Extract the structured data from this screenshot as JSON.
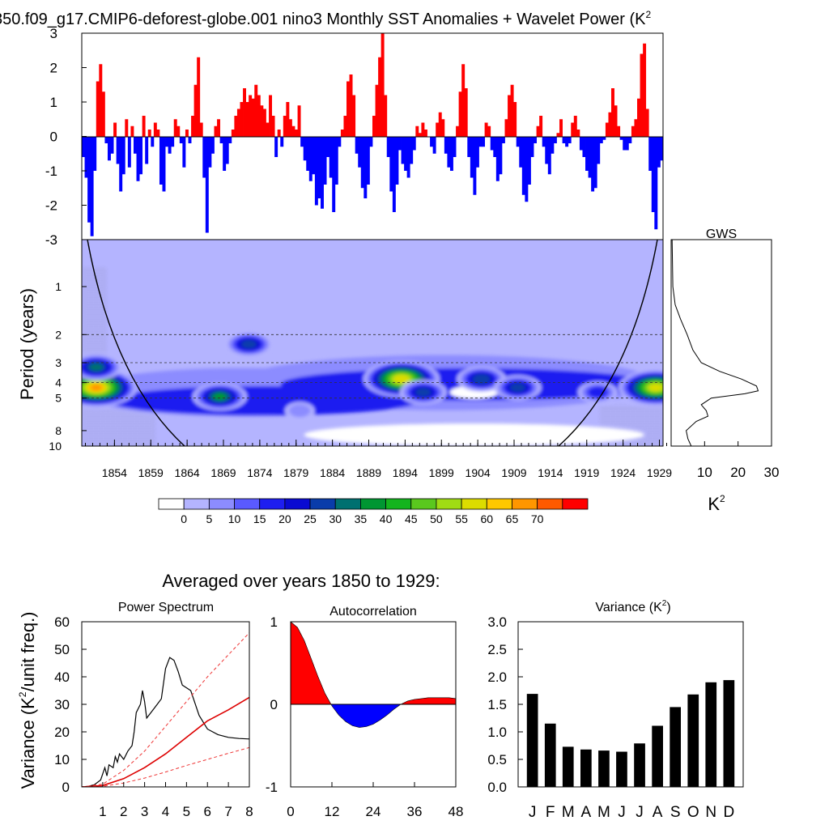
{
  "figure": {
    "title": "850.f09_g17.CMIP6-deforest-globe.001 nino3 Monthly SST Anomalies + Wavelet Power (K",
    "title_sup": "2",
    "averaged_label": "Averaged over years 1850 to 1929:"
  },
  "chart_data": [
    {
      "id": "anomaly",
      "type": "bar",
      "ylim": [
        -3,
        3
      ],
      "yticks": [
        "3",
        "2",
        "1",
        "0",
        "-1",
        "-2",
        "-3"
      ],
      "colors": {
        "positive": "#ff0000",
        "negative": "#0000ff"
      },
      "x_start_year": 1850,
      "x_end_year": 1930,
      "values": [
        -0.6,
        -1.2,
        -2.5,
        -2.9,
        -1.0,
        1.6,
        2.1,
        1.3,
        -0.2,
        -0.7,
        -0.5,
        0.4,
        -0.8,
        -1.6,
        -1.1,
        0.5,
        -0.9,
        0.3,
        -0.5,
        -1.3,
        -1.1,
        0.6,
        -0.8,
        0.2,
        -0.3,
        0.4,
        0.2,
        -1.4,
        -1.6,
        -0.3,
        -0.5,
        -0.3,
        0.5,
        0.3,
        -0.2,
        -0.9,
        0.2,
        -0.2,
        0.6,
        1.5,
        2.3,
        0.4,
        -1.2,
        -2.8,
        -0.9,
        -0.5,
        0.3,
        0.5,
        -0.2,
        -1.0,
        -0.8,
        -0.2,
        0.2,
        0.6,
        0.8,
        1.0,
        1.4,
        1.0,
        1.2,
        1.1,
        1.5,
        1.2,
        0.9,
        0.8,
        0.4,
        1.2,
        0.6,
        -0.6,
        0.2,
        -0.3,
        0.6,
        1.0,
        0.5,
        0.3,
        0.2,
        0.9,
        -0.3,
        -0.7,
        -1.0,
        -1.3,
        -1.1,
        -2.0,
        -1.8,
        -2.1,
        -1.4,
        -0.6,
        -1.2,
        -2.2,
        -1.4,
        -0.3,
        0.2,
        0.6,
        1.6,
        1.8,
        1.2,
        -0.5,
        -0.9,
        -1.5,
        -1.8,
        -1.4,
        -0.3,
        0.6,
        1.5,
        2.3,
        3.0,
        1.2,
        -0.6,
        -1.6,
        -2.2,
        -1.4,
        -0.4,
        -0.8,
        -1.0,
        -1.2,
        -0.8,
        -0.4,
        0.3,
        0.1,
        0.4,
        0.2,
        0.0,
        -0.3,
        -0.5,
        0.4,
        0.7,
        0.5,
        -0.5,
        -0.9,
        -1.0,
        -0.6,
        0.3,
        1.3,
        2.1,
        1.4,
        -0.6,
        -1.2,
        -1.7,
        -0.9,
        -0.3,
        -0.3,
        0.4,
        0.3,
        -0.4,
        -0.6,
        -1.3,
        -1.1,
        -0.2,
        0.5,
        1.2,
        1.5,
        1.0,
        -0.3,
        -0.9,
        -1.7,
        -1.9,
        -1.4,
        -0.6,
        -0.2,
        0.3,
        0.6,
        -0.3,
        -0.8,
        -1.1,
        -0.5,
        -0.2,
        0.1,
        0.5,
        -0.2,
        -0.3,
        -0.2,
        0.4,
        0.6,
        0.2,
        -0.4,
        -0.6,
        -1.0,
        -1.2,
        -1.6,
        -1.5,
        -0.8,
        -0.2,
        -0.1,
        0.4,
        0.7,
        1.4,
        0.9,
        0.3,
        -0.1,
        -0.4,
        -0.4,
        -0.2,
        0.3,
        0.5,
        1.1,
        2.4,
        2.7,
        0.8,
        -1.0,
        -2.2,
        -2.7,
        -0.9,
        -0.7
      ]
    },
    {
      "id": "wavelet",
      "type": "heatmap",
      "ylabel": "Period (years)",
      "yticks": [
        "1",
        "2",
        "3",
        "4",
        "5",
        "8",
        "10"
      ],
      "xticks": [
        "1854",
        "1859",
        "1864",
        "1869",
        "1874",
        "1879",
        "1884",
        "1889",
        "1894",
        "1899",
        "1904",
        "1909",
        "1914",
        "1919",
        "1924",
        "1929"
      ],
      "x_range": [
        1850,
        1930
      ],
      "dashed_periods": [
        2,
        3,
        4,
        5
      ],
      "blobs": [
        {
          "year": 1852,
          "period": 4.3,
          "peak": 68
        },
        {
          "year": 1852,
          "period": 3.2,
          "peak": 34
        },
        {
          "year": 1869,
          "period": 4.9,
          "peak": 38
        },
        {
          "year": 1873,
          "period": 2.3,
          "peak": 30
        },
        {
          "year": 1880,
          "period": 6.0,
          "peak": 12
        },
        {
          "year": 1894,
          "period": 3.8,
          "peak": 62
        },
        {
          "year": 1897,
          "period": 4.6,
          "peak": 30
        },
        {
          "year": 1905,
          "period": 3.8,
          "peak": 32
        },
        {
          "year": 1910,
          "period": 4.3,
          "peak": 30
        },
        {
          "year": 1921,
          "period": 4.6,
          "peak": 22
        },
        {
          "year": 1929,
          "period": 4.3,
          "peak": 60
        }
      ]
    },
    {
      "id": "gws",
      "type": "line",
      "title": "GWS",
      "xlabel": "K",
      "xlabel_sup": "2",
      "xticks": [
        "10",
        "20",
        "30"
      ],
      "xlim": [
        0,
        30
      ],
      "period": [
        0.5,
        1.0,
        1.3,
        1.6,
        2.0,
        2.5,
        3.0,
        3.4,
        3.8,
        4.2,
        4.5,
        4.7,
        5.0,
        5.5,
        6.0,
        6.5,
        7.0,
        8.0,
        9.0,
        10.0
      ],
      "power": [
        0.3,
        0.5,
        1.2,
        2.8,
        4.8,
        6.5,
        9.0,
        14.5,
        21.0,
        25.5,
        26.0,
        22.0,
        12.0,
        9.0,
        10.5,
        11.0,
        7.5,
        4.5,
        5.0,
        6.0
      ]
    },
    {
      "id": "colorbar",
      "type": "table",
      "labels": [
        "0",
        "5",
        "10",
        "15",
        "20",
        "25",
        "30",
        "35",
        "40",
        "45",
        "50",
        "55",
        "60",
        "65",
        "70"
      ],
      "colors": [
        "#ffffff",
        "#b4b4ff",
        "#8c8cff",
        "#5a5aff",
        "#1e1ef0",
        "#0a0ad2",
        "#0a3caa",
        "#007070",
        "#009632",
        "#14b41e",
        "#5ac81e",
        "#a0dc14",
        "#dcdc00",
        "#ffc800",
        "#ff9600",
        "#ff5a00",
        "#ff0000"
      ]
    },
    {
      "id": "power_spectrum",
      "type": "line",
      "title": "Power Spectrum",
      "ylabel": "Variance (K",
      "ylabel_sup": "2",
      "ylabel_tail": "/unit freq.)",
      "xticks": [
        "1",
        "2",
        "3",
        "4",
        "5",
        "6",
        "7",
        "8"
      ],
      "yticks": [
        "0",
        "10",
        "20",
        "30",
        "40",
        "50",
        "60"
      ],
      "xlim": [
        0,
        8
      ],
      "ylim": [
        0,
        60
      ],
      "series": [
        {
          "values": [
            [
              0,
              0
            ],
            [
              0.3,
              0.2
            ],
            [
              0.6,
              0.8
            ],
            [
              0.9,
              2.5
            ],
            [
              1.1,
              7
            ],
            [
              1.2,
              4
            ],
            [
              1.3,
              8
            ],
            [
              1.5,
              7
            ],
            [
              1.6,
              11
            ],
            [
              1.7,
              9
            ],
            [
              1.8,
              12
            ],
            [
              2.0,
              10
            ],
            [
              2.2,
              13
            ],
            [
              2.4,
              15
            ],
            [
              2.5,
              20
            ],
            [
              2.6,
              27
            ],
            [
              2.8,
              30
            ],
            [
              2.9,
              35
            ],
            [
              3.0,
              31
            ],
            [
              3.1,
              25
            ],
            [
              3.3,
              27
            ],
            [
              3.6,
              30
            ],
            [
              3.8,
              32
            ],
            [
              4.0,
              43
            ],
            [
              4.2,
              47
            ],
            [
              4.4,
              46
            ],
            [
              4.6,
              42
            ],
            [
              4.8,
              37
            ],
            [
              5.0,
              36
            ],
            [
              5.2,
              35
            ],
            [
              5.6,
              26
            ],
            [
              6.0,
              21
            ],
            [
              6.5,
              19
            ],
            [
              7.0,
              18
            ],
            [
              7.5,
              17.6
            ],
            [
              8.0,
              17.4
            ]
          ]
        },
        {
          "values": [
            [
              0,
              0
            ],
            [
              1,
              0.5
            ],
            [
              2,
              3
            ],
            [
              3,
              7
            ],
            [
              4,
              12
            ],
            [
              5,
              18
            ],
            [
              6,
              24
            ],
            [
              7,
              28
            ],
            [
              8,
              32.5
            ]
          ]
        },
        {
          "values": [
            [
              0,
              0
            ],
            [
              1,
              1
            ],
            [
              2,
              6
            ],
            [
              3,
              13
            ],
            [
              4,
              22
            ],
            [
              5,
              31
            ],
            [
              6,
              40
            ],
            [
              7,
              48
            ],
            [
              8,
              56
            ]
          ]
        },
        {
          "values": [
            [
              0,
              0
            ],
            [
              1,
              0.2
            ],
            [
              2,
              1.4
            ],
            [
              3,
              3.2
            ],
            [
              4,
              5.4
            ],
            [
              5,
              7.8
            ],
            [
              6,
              10
            ],
            [
              7,
              12.2
            ],
            [
              8,
              14.3
            ]
          ]
        }
      ],
      "colors": {
        "observed": "#000000",
        "mean": "#dd0000",
        "bounds": "#ee3333"
      }
    },
    {
      "id": "autocorrelation",
      "type": "area",
      "title": "Autocorrelation",
      "xticks": [
        "0",
        "12",
        "24",
        "36",
        "48"
      ],
      "yticks": [
        "1",
        "0",
        "-1"
      ],
      "xlim": [
        0,
        48
      ],
      "ylim": [
        -1,
        1
      ],
      "x": [
        0,
        2,
        4,
        6,
        8,
        10,
        12,
        14,
        16,
        18,
        20,
        22,
        24,
        26,
        28,
        30,
        32,
        34,
        36,
        38,
        40,
        42,
        44,
        46,
        48
      ],
      "values": [
        1.0,
        0.93,
        0.77,
        0.55,
        0.33,
        0.13,
        -0.02,
        -0.13,
        -0.21,
        -0.26,
        -0.28,
        -0.27,
        -0.24,
        -0.19,
        -0.13,
        -0.06,
        0.0,
        0.04,
        0.06,
        0.07,
        0.08,
        0.08,
        0.08,
        0.08,
        0.07
      ],
      "colors": {
        "positive": "#ff0000",
        "negative": "#0000ff"
      }
    },
    {
      "id": "variance",
      "type": "bar",
      "title": "Variance (K",
      "title_sup": "2",
      "title_tail": ")",
      "categories": [
        "J",
        "F",
        "M",
        "A",
        "M",
        "J",
        "J",
        "A",
        "S",
        "O",
        "N",
        "D"
      ],
      "values": [
        1.69,
        1.15,
        0.73,
        0.68,
        0.66,
        0.64,
        0.79,
        1.11,
        1.45,
        1.68,
        1.9,
        1.94
      ],
      "yticks": [
        "3.0",
        "2.5",
        "2.0",
        "1.5",
        "1.0",
        "0.5",
        "0.0"
      ],
      "ylim": [
        0,
        3
      ],
      "color": "#000000"
    }
  ]
}
